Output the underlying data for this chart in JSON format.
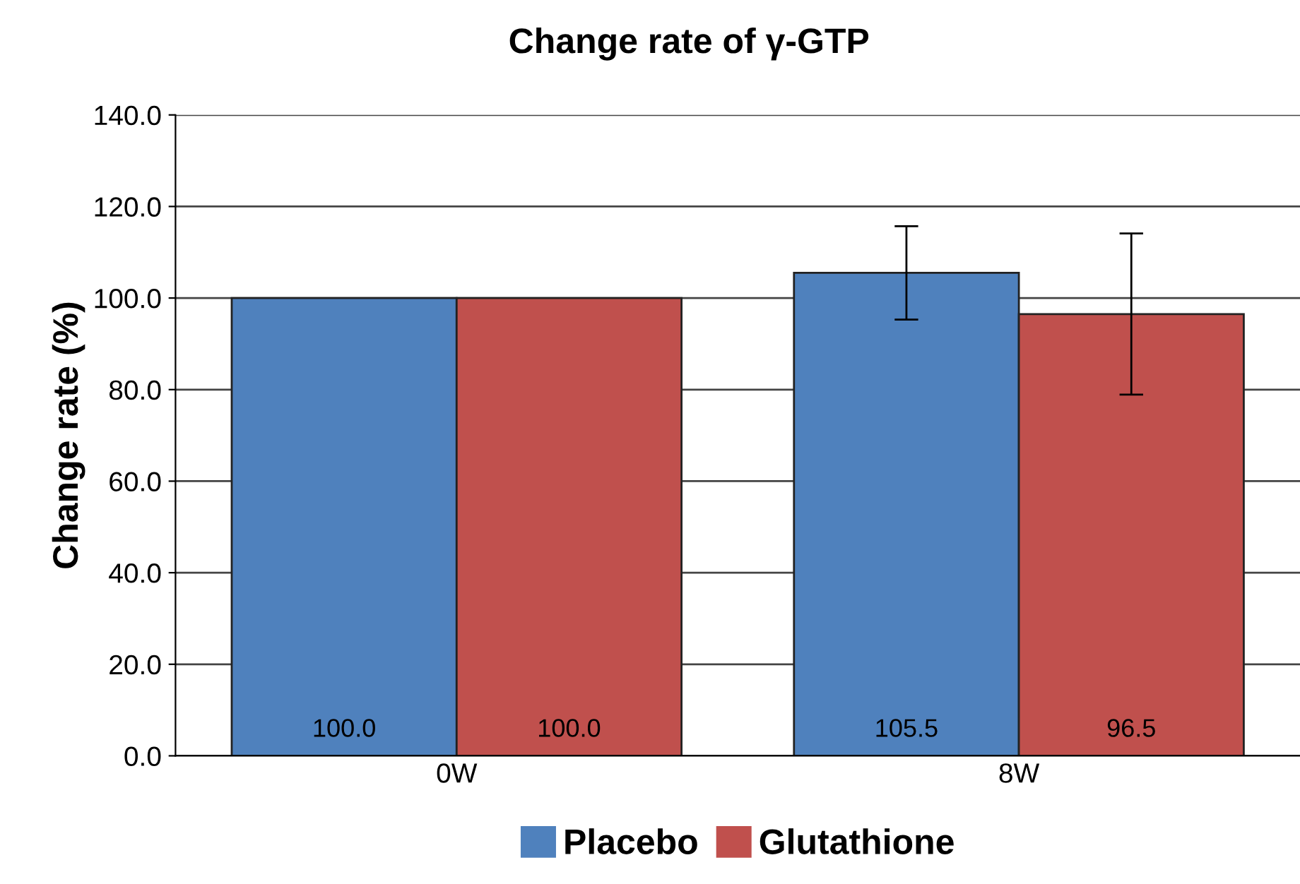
{
  "chart_data": {
    "type": "bar",
    "title": "Change rate of γ-GTP",
    "ylabel": "Change rate (%)",
    "categories": [
      "0W",
      "8W"
    ],
    "series": [
      {
        "name": "Placebo",
        "color": "#4f81bd",
        "values": [
          100.0,
          105.5
        ],
        "errors": [
          null,
          10.2
        ],
        "value_labels": [
          "100.0",
          "105.5"
        ]
      },
      {
        "name": "Glutathione",
        "color": "#c0504d",
        "values": [
          100.0,
          96.5
        ],
        "errors": [
          null,
          17.6
        ],
        "value_labels": [
          "100.0",
          "96.5"
        ]
      }
    ],
    "ylim": [
      0,
      140
    ],
    "yticks": [
      {
        "value": 0,
        "label": "0.0"
      },
      {
        "value": 20,
        "label": "20.0"
      },
      {
        "value": 40,
        "label": "40.0"
      },
      {
        "value": 60,
        "label": "60.0"
      },
      {
        "value": 80,
        "label": "80.0"
      },
      {
        "value": 100,
        "label": "100.0"
      },
      {
        "value": 120,
        "label": "120.0"
      },
      {
        "value": 140,
        "label": "140.0"
      }
    ],
    "grid": "y",
    "legend": "bottom"
  }
}
